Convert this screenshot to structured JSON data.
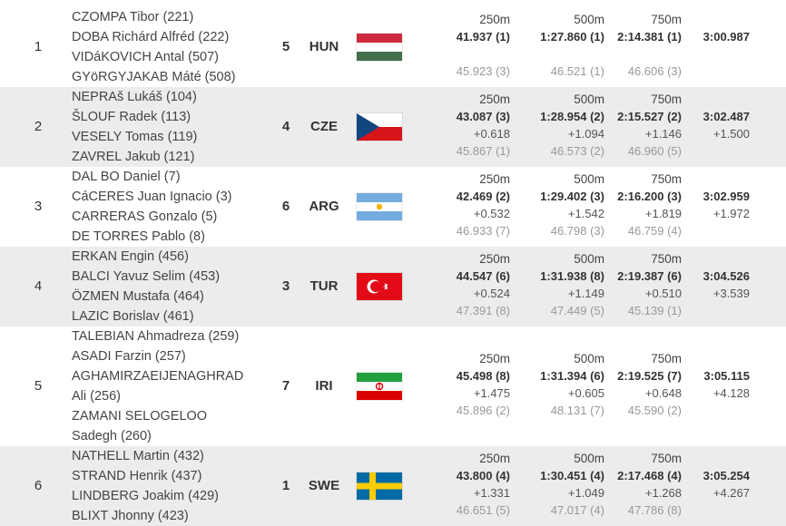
{
  "results": [
    {
      "rank": "1",
      "crew": [
        "CZOMPA Tibor (221)",
        "DOBA Richárd Alfréd (222)",
        "VIDáKOVICH Antal (507)",
        "GYöRGYJAKAB Máté (508)"
      ],
      "lane": "5",
      "nation": "HUN",
      "flag": "hungary-flag",
      "splits": {
        "labels": [
          "250m",
          "500m",
          "750m"
        ],
        "times": [
          "41.937 (1)",
          "1:27.860 (1)",
          "2:14.381 (1)"
        ],
        "finish": "3:00.987",
        "diffs": [
          "",
          "",
          ""
        ],
        "finish_diff": "",
        "segments": [
          "45.923 (3)",
          "46.521 (1)",
          "46.606 (3)"
        ]
      }
    },
    {
      "rank": "2",
      "crew": [
        "NEPRAš Lukáš (104)",
        "ŠLOUF Radek (113)",
        "VESELY Tomas (119)",
        "ZAVREL Jakub (121)"
      ],
      "lane": "4",
      "nation": "CZE",
      "flag": "czech-flag",
      "splits": {
        "labels": [
          "250m",
          "500m",
          "750m"
        ],
        "times": [
          "43.087 (3)",
          "1:28.954 (2)",
          "2:15.527 (2)"
        ],
        "finish": "3:02.487",
        "diffs": [
          "+0.618",
          "+1.094",
          "+1.146"
        ],
        "finish_diff": "+1.500",
        "segments": [
          "45.867 (1)",
          "46.573 (2)",
          "46.960 (5)"
        ]
      }
    },
    {
      "rank": "3",
      "crew": [
        "DAL BO Daniel (7)",
        "CáCERES Juan Ignacio (3)",
        "CARRERAS Gonzalo (5)",
        "DE TORRES Pablo (8)"
      ],
      "lane": "6",
      "nation": "ARG",
      "flag": "argentina-flag",
      "splits": {
        "labels": [
          "250m",
          "500m",
          "750m"
        ],
        "times": [
          "42.469 (2)",
          "1:29.402 (3)",
          "2:16.200 (3)"
        ],
        "finish": "3:02.959",
        "diffs": [
          "+0.532",
          "+1.542",
          "+1.819"
        ],
        "finish_diff": "+1.972",
        "segments": [
          "46.933 (7)",
          "46.798 (3)",
          "46.759 (4)"
        ]
      }
    },
    {
      "rank": "4",
      "crew": [
        "ERKAN Engin (456)",
        "BALCI Yavuz Selim (453)",
        "ÖZMEN Mustafa (464)",
        "LAZIC Borislav (461)"
      ],
      "lane": "3",
      "nation": "TUR",
      "flag": "turkey-flag",
      "splits": {
        "labels": [
          "250m",
          "500m",
          "750m"
        ],
        "times": [
          "44.547 (6)",
          "1:31.938 (8)",
          "2:19.387 (6)"
        ],
        "finish": "3:04.526",
        "diffs": [
          "+0.524",
          "+1.149",
          "+0.510"
        ],
        "finish_diff": "+3.539",
        "segments": [
          "47.391 (8)",
          "47.449 (5)",
          "45.139 (1)"
        ]
      }
    },
    {
      "rank": "5",
      "crew": [
        "TALEBIAN Ahmadreza (259)",
        "ASADI Farzin (257)",
        "AGHAMIRZAEIJENAGHRAD",
        "Ali (256)",
        "ZAMANI SELOGELOO",
        "Sadegh (260)"
      ],
      "lane": "7",
      "nation": "IRI",
      "flag": "iran-flag",
      "splits": {
        "labels": [
          "250m",
          "500m",
          "750m"
        ],
        "times": [
          "45.498 (8)",
          "1:31.394 (6)",
          "2:19.525 (7)"
        ],
        "finish": "3:05.115",
        "diffs": [
          "+1.475",
          "+0.605",
          "+0.648"
        ],
        "finish_diff": "+4.128",
        "segments": [
          "45.896 (2)",
          "48.131 (7)",
          "45.590 (2)"
        ]
      }
    },
    {
      "rank": "6",
      "crew": [
        "NATHELL Martin (432)",
        "STRAND Henrik (437)",
        "LINDBERG Joakim (429)",
        "BLIXT Jhonny (423)"
      ],
      "lane": "1",
      "nation": "SWE",
      "flag": "sweden-flag",
      "splits": {
        "labels": [
          "250m",
          "500m",
          "750m"
        ],
        "times": [
          "43.800 (4)",
          "1:30.451 (4)",
          "2:17.468 (4)"
        ],
        "finish": "3:05.254",
        "diffs": [
          "+1.331",
          "+1.049",
          "+1.268"
        ],
        "finish_diff": "+4.267",
        "segments": [
          "46.651 (5)",
          "47.017 (4)",
          "47.786 (8)"
        ]
      }
    }
  ],
  "colors": {
    "row_alt": "#ececec",
    "time_text": "#333333",
    "segment_text": "#999999"
  }
}
